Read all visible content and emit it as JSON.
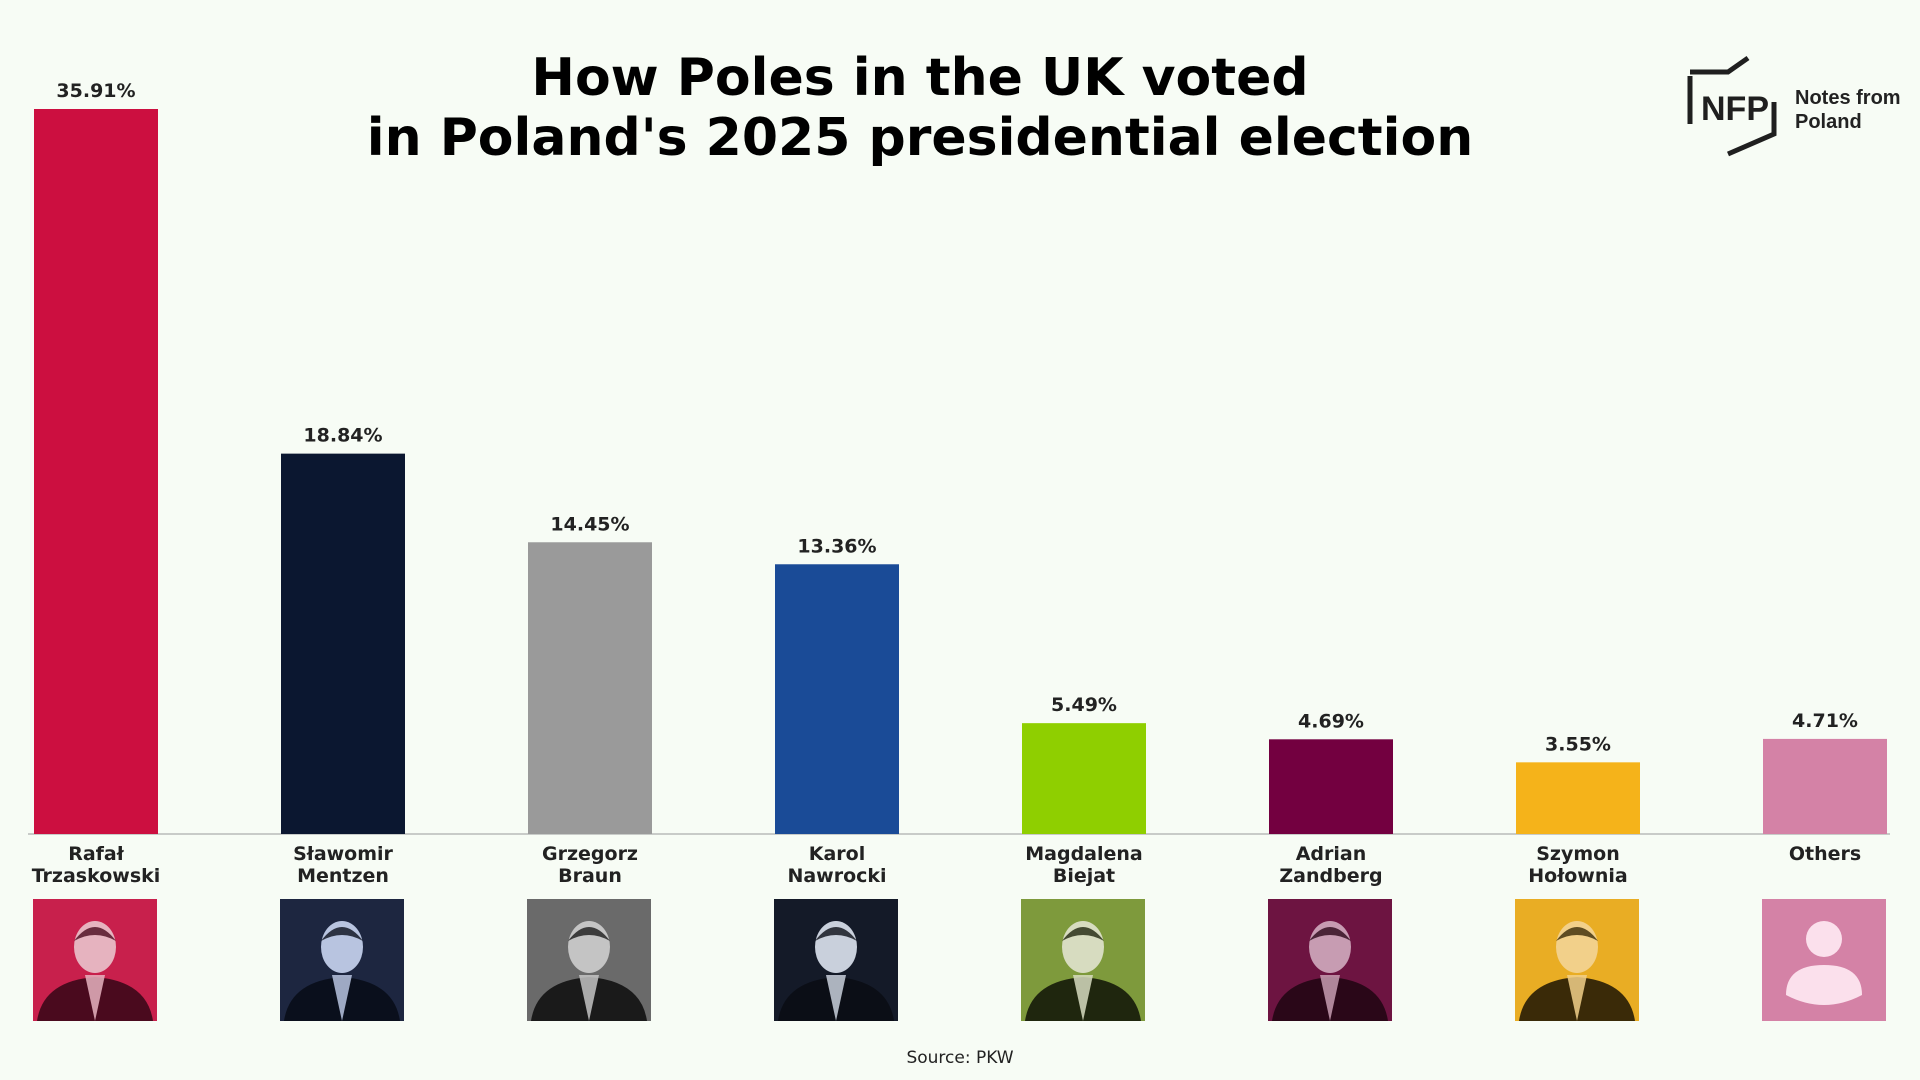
{
  "title": {
    "line1": "How Poles in the UK voted",
    "line2": "in Poland's 2025 presidential election"
  },
  "logo": {
    "mark": "NFP",
    "line1": "Notes from",
    "line2": "Poland"
  },
  "source": "Source: PKW",
  "chart_data": {
    "type": "bar",
    "categories": [
      [
        "Rafał",
        "Trzaskowski"
      ],
      [
        "Sławomir",
        "Mentzen"
      ],
      [
        "Grzegorz",
        "Braun"
      ],
      [
        "Karol",
        "Nawrocki"
      ],
      [
        "Magdalena",
        "Biejat"
      ],
      [
        "Adrian",
        "Zandberg"
      ],
      [
        "Szymon",
        "Hołownia"
      ],
      [
        "Others"
      ]
    ],
    "values": [
      35.91,
      18.84,
      14.45,
      13.36,
      5.49,
      4.69,
      3.55,
      4.71
    ],
    "value_labels": [
      "35.91%",
      "18.84%",
      "14.45%",
      "13.36%",
      "5.49%",
      "4.69%",
      "3.55%",
      "4.71%"
    ],
    "colors": [
      "#cc0f40",
      "#0b1730",
      "#9a9a9a",
      "#1a4b97",
      "#8fcf00",
      "#730040",
      "#f5b31a",
      "#d482a6"
    ],
    "ylim": [
      0,
      35.91
    ],
    "grid": false,
    "legend": "none",
    "title": "How Poles in the UK voted in Poland's 2025 presidential election",
    "xlabel": "",
    "ylabel": ""
  },
  "portraits": [
    {
      "icon": "portrait-trzaskowski",
      "bg": "#c8204c",
      "fg": "#4a0a1e",
      "skin": "#e6b3bf"
    },
    {
      "icon": "portrait-mentzen",
      "bg": "#1d2640",
      "fg": "#0a0f1c",
      "skin": "#b8c4e0"
    },
    {
      "icon": "portrait-braun",
      "bg": "#6a6a6a",
      "fg": "#1a1a1a",
      "skin": "#c4c4c4"
    },
    {
      "icon": "portrait-nawrocki",
      "bg": "#141a28",
      "fg": "#0b0e16",
      "skin": "#c9d0dc"
    },
    {
      "icon": "portrait-biejat",
      "bg": "#7e9a3c",
      "fg": "#1f260e",
      "skin": "#d7dcc0"
    },
    {
      "icon": "portrait-zandberg",
      "bg": "#6d1441",
      "fg": "#2a0718",
      "skin": "#c79cb2"
    },
    {
      "icon": "portrait-holownia",
      "bg": "#e9ad24",
      "fg": "#3a2a08",
      "skin": "#f2d08a"
    },
    {
      "icon": "person-placeholder-icon",
      "bg": "#d482a6",
      "fg": "#fbe0ec",
      "skin": "#fbe0ec"
    }
  ]
}
